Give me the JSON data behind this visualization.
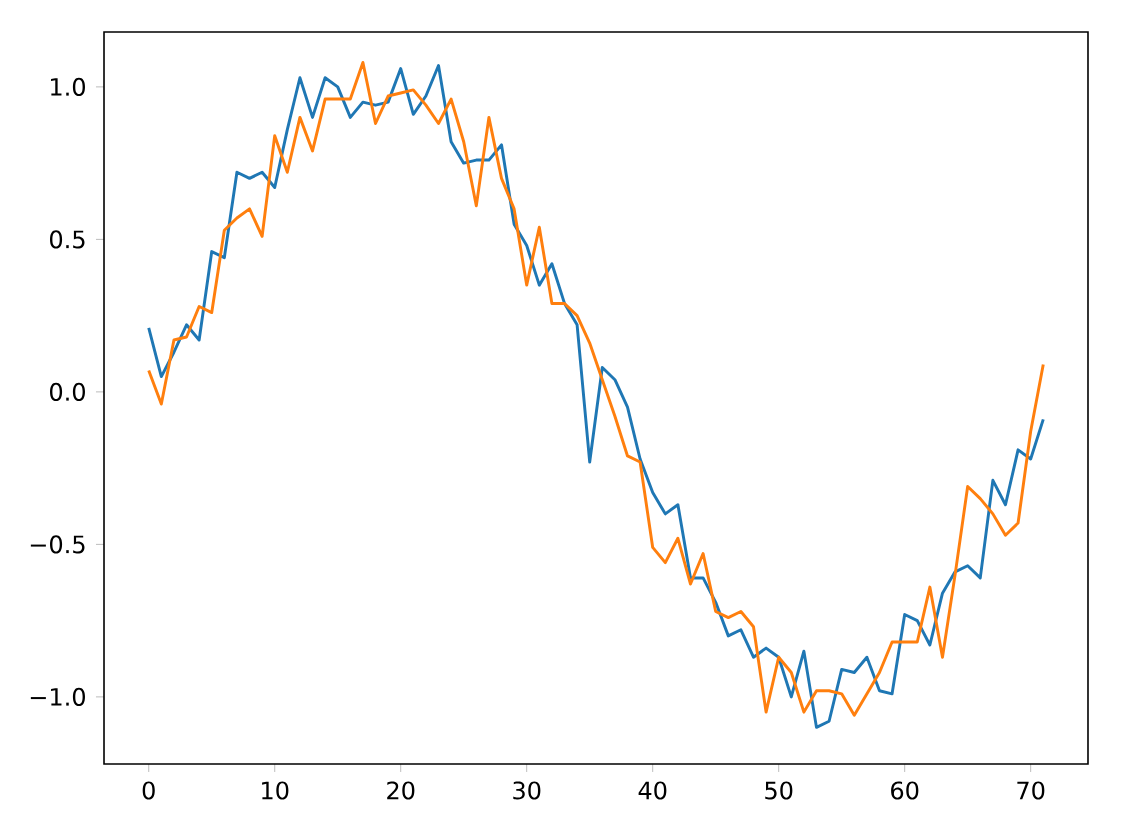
{
  "chart_data": {
    "type": "line",
    "x": [
      0,
      1,
      2,
      3,
      4,
      5,
      6,
      7,
      8,
      9,
      10,
      11,
      12,
      13,
      14,
      15,
      16,
      17,
      18,
      19,
      20,
      21,
      22,
      23,
      24,
      25,
      26,
      27,
      28,
      29,
      30,
      31,
      32,
      33,
      34,
      35,
      36,
      37,
      38,
      39,
      40,
      41,
      42,
      43,
      44,
      45,
      46,
      47,
      48,
      49,
      50,
      51,
      52,
      53,
      54,
      55,
      56,
      57,
      58,
      59,
      60,
      61,
      62,
      63,
      64,
      65,
      66,
      67,
      68,
      69,
      70,
      71
    ],
    "series": [
      {
        "color": "#1f77b4",
        "values": [
          0.21,
          0.05,
          0.13,
          0.22,
          0.17,
          0.46,
          0.44,
          0.72,
          0.7,
          0.72,
          0.67,
          0.86,
          1.03,
          0.9,
          1.03,
          1.0,
          0.9,
          0.95,
          0.94,
          0.95,
          1.06,
          0.91,
          0.97,
          1.07,
          0.82,
          0.75,
          0.76,
          0.76,
          0.81,
          0.55,
          0.48,
          0.35,
          0.42,
          0.29,
          0.22,
          -0.23,
          0.08,
          0.04,
          -0.05,
          -0.22,
          -0.33,
          -0.4,
          -0.37,
          -0.61,
          -0.61,
          -0.69,
          -0.8,
          -0.78,
          -0.87,
          -0.84,
          -0.87,
          -1.0,
          -0.85,
          -1.1,
          -1.08,
          -0.91,
          -0.92,
          -0.87,
          -0.98,
          -0.99,
          -0.73,
          -0.75,
          -0.83,
          -0.66,
          -0.59,
          -0.57,
          -0.61,
          -0.29,
          -0.37,
          -0.19,
          -0.22,
          -0.09
        ]
      },
      {
        "color": "#ff7f0e",
        "values": [
          0.07,
          -0.04,
          0.17,
          0.18,
          0.28,
          0.26,
          0.53,
          0.57,
          0.6,
          0.51,
          0.84,
          0.72,
          0.9,
          0.79,
          0.96,
          0.96,
          0.96,
          1.08,
          0.88,
          0.97,
          0.98,
          0.99,
          0.94,
          0.88,
          0.96,
          0.82,
          0.61,
          0.9,
          0.7,
          0.6,
          0.35,
          0.54,
          0.29,
          0.29,
          0.25,
          0.16,
          0.04,
          -0.08,
          -0.21,
          -0.23,
          -0.51,
          -0.56,
          -0.48,
          -0.63,
          -0.53,
          -0.72,
          -0.74,
          -0.72,
          -0.77,
          -1.05,
          -0.87,
          -0.92,
          -1.05,
          -0.98,
          -0.98,
          -0.99,
          -1.06,
          -0.99,
          -0.92,
          -0.82,
          -0.82,
          -0.82,
          -0.64,
          -0.87,
          -0.6,
          -0.31,
          -0.35,
          -0.4,
          -0.47,
          -0.43,
          -0.13,
          0.09
        ]
      }
    ],
    "xlim": [
      -3.55,
      74.55
    ],
    "ylim": [
      -1.22,
      1.18
    ],
    "xticks": [
      0,
      10,
      20,
      30,
      40,
      50,
      60,
      70
    ],
    "yticks": [
      {
        "value": -1.0,
        "label": "−1.0"
      },
      {
        "value": -0.5,
        "label": "−0.5"
      },
      {
        "value": 0.0,
        "label": "0.0"
      },
      {
        "value": 0.5,
        "label": "0.5"
      },
      {
        "value": 1.0,
        "label": "1.0"
      }
    ],
    "marker": "none",
    "line_style": "solid"
  }
}
